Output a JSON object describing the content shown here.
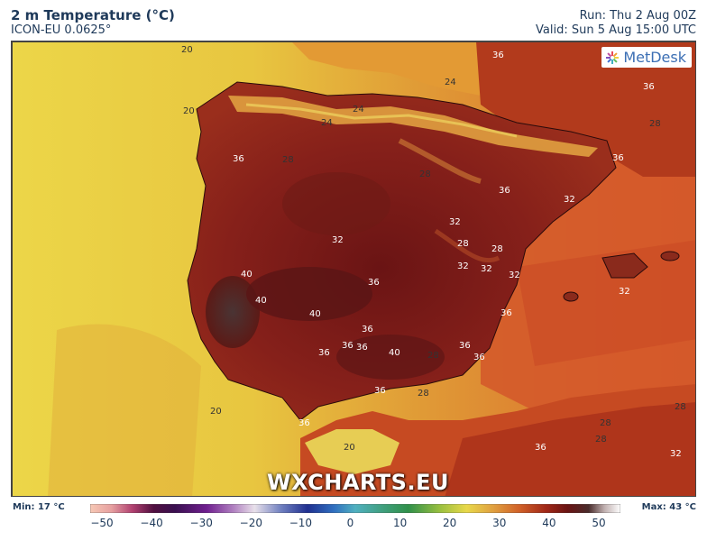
{
  "header": {
    "title": "2 m Temperature (°C)",
    "model": "ICON-EU 0.0625°",
    "run": "Run: Thu 2 Aug 00Z",
    "valid": "Valid: Sun 5 Aug 15:00 UTC"
  },
  "brand": {
    "name": "MetDesk"
  },
  "watermark": "WXCHARTS.EU",
  "legend": {
    "min_label": "Min: 17 °C",
    "max_label": "Max: 43 °C",
    "ticks": [
      "−50",
      "−40",
      "−30",
      "−20",
      "−10",
      "0",
      "10",
      "20",
      "30",
      "40",
      "50"
    ],
    "range": [
      -50,
      50
    ]
  },
  "contour_labels": [
    "20",
    "24",
    "28",
    "32",
    "36",
    "40"
  ],
  "colors": {
    "sea_cool": "#ead246",
    "sea_mid": "#e4b13a",
    "sea_warm": "#d7652a",
    "land_hot": "#8a1f18",
    "land_very_hot": "#5a1212",
    "land_extreme": "#4a2c2c",
    "coast": "#f0d660",
    "text": "#1f3a5a"
  }
}
